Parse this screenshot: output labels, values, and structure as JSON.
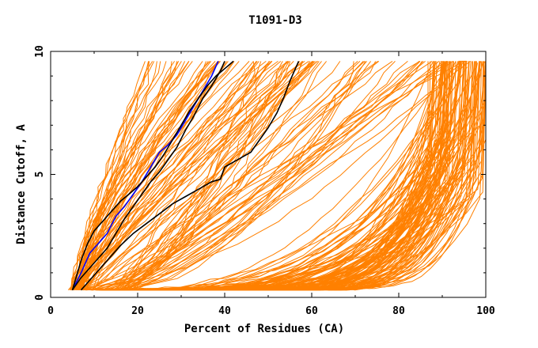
{
  "chart_data": {
    "type": "line",
    "title": "T1091-D3",
    "xlabel": "Percent of Residues (CA)",
    "ylabel": "Distance Cutoff, A",
    "xlim": [
      0,
      100
    ],
    "ylim": [
      0,
      10
    ],
    "x_ticks": [
      "0",
      "20",
      "40",
      "60",
      "80",
      "100"
    ],
    "y_ticks": [
      "0",
      "5",
      "10"
    ],
    "grid": false,
    "legend": "none",
    "colors": {
      "models": "#ff8000",
      "black": "#000000",
      "blue": "#0000ff",
      "axis": "#000000"
    },
    "series": [
      {
        "color": "#0000ff",
        "x": [
          5,
          7,
          9,
          11,
          13,
          15,
          17,
          19,
          21,
          23,
          25,
          27,
          29,
          31,
          33,
          35,
          37,
          38.5
        ],
        "y": [
          0.3,
          1.0,
          1.8,
          2.2,
          2.6,
          3.3,
          3.7,
          4.2,
          4.7,
          5.3,
          5.9,
          6.2,
          6.6,
          7.2,
          7.8,
          8.4,
          9.0,
          9.6
        ]
      },
      {
        "color": "#000000",
        "x": [
          5,
          7,
          8.5,
          10,
          12,
          14,
          16,
          18,
          20,
          22,
          24,
          26,
          28,
          30,
          32,
          34,
          36,
          38,
          40,
          42
        ],
        "y": [
          0.3,
          1.5,
          2.2,
          2.7,
          3.1,
          3.5,
          3.9,
          4.2,
          4.5,
          4.9,
          5.3,
          5.8,
          6.4,
          7.0,
          7.6,
          8.1,
          8.6,
          9.0,
          9.3,
          9.6
        ]
      },
      {
        "color": "#000000",
        "x": [
          5,
          7,
          10,
          13,
          15,
          17,
          19,
          21,
          23,
          25,
          27,
          29,
          31,
          33,
          35,
          37,
          39,
          40
        ],
        "y": [
          0.3,
          0.8,
          1.4,
          2.0,
          2.6,
          3.2,
          3.7,
          4.2,
          4.7,
          5.1,
          5.6,
          6.1,
          6.8,
          7.4,
          8.1,
          8.6,
          9.2,
          9.6
        ]
      },
      {
        "color": "#000000",
        "x": [
          7,
          10,
          13,
          16,
          19,
          22,
          25,
          28,
          31,
          34,
          37,
          39,
          40,
          43,
          46,
          48,
          50,
          52,
          53.5,
          55,
          57
        ],
        "y": [
          0.3,
          0.9,
          1.5,
          2.1,
          2.6,
          3.0,
          3.4,
          3.8,
          4.1,
          4.4,
          4.7,
          4.8,
          5.3,
          5.6,
          5.9,
          6.4,
          6.9,
          7.5,
          8.1,
          8.8,
          9.6
        ]
      }
    ]
  }
}
